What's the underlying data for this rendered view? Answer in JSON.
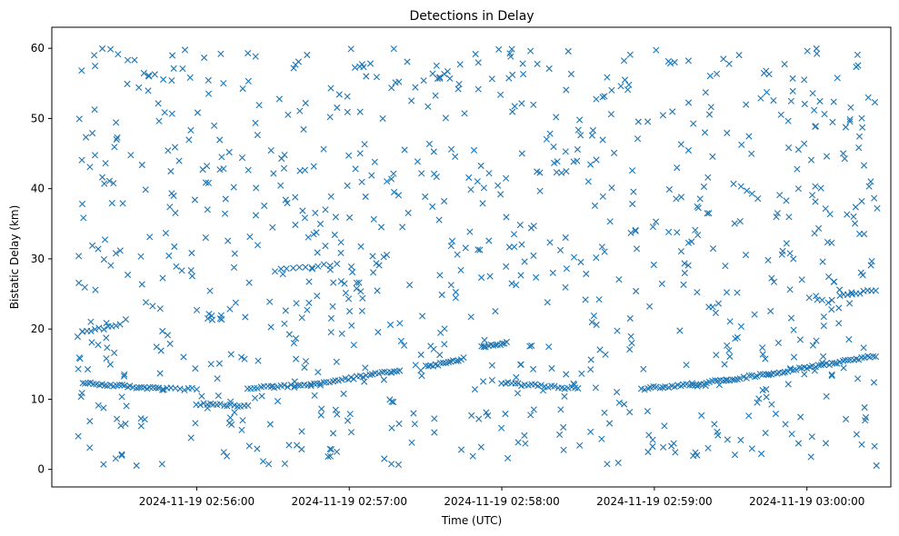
{
  "chart_data": {
    "type": "scatter",
    "title": "Detections in Delay",
    "xlabel": "Time (UTC)",
    "ylabel": "Bistatic Delay (km)",
    "marker": "x",
    "color": "#1f77b4",
    "grid": false,
    "legend": null,
    "x_unit": "seconds",
    "xlim": [
      "2024-11-19 02:55:03",
      "2024-11-19 03:00:33"
    ],
    "ylim": [
      -2.5,
      63
    ],
    "x_ticks": [
      "2024-11-19 02:56:00",
      "2024-11-19 02:57:00",
      "2024-11-19 02:58:00",
      "2024-11-19 02:59:00",
      "2024-11-19 03:00:00"
    ],
    "y_ticks": [
      0,
      10,
      20,
      30,
      40,
      50,
      60
    ],
    "tracks": [
      {
        "t_start": "2024-11-19 02:55:15",
        "t_end": "2024-11-19 02:55:45",
        "delay_start": 12.3,
        "delay_end": 11.5,
        "count": 28
      },
      {
        "t_start": "2024-11-19 02:55:45",
        "t_end": "2024-11-19 02:56:00",
        "delay_start": 11.5,
        "delay_end": 11.4,
        "count": 10
      },
      {
        "t_start": "2024-11-19 02:56:00",
        "t_end": "2024-11-19 02:56:20",
        "delay_start": 9.3,
        "delay_end": 9.0,
        "count": 16
      },
      {
        "t_start": "2024-11-19 02:56:20",
        "t_end": "2024-11-19 02:56:45",
        "delay_start": 11.6,
        "delay_end": 12.0,
        "count": 20
      },
      {
        "t_start": "2024-11-19 02:56:45",
        "t_end": "2024-11-19 02:57:20",
        "delay_start": 12.0,
        "delay_end": 14.2,
        "count": 30
      },
      {
        "t_start": "2024-11-19 02:57:30",
        "t_end": "2024-11-19 02:57:45",
        "delay_start": 14.6,
        "delay_end": 15.8,
        "count": 16
      },
      {
        "t_start": "2024-11-19 02:57:52",
        "t_end": "2024-11-19 02:58:02",
        "delay_start": 17.5,
        "delay_end": 18.0,
        "count": 12
      },
      {
        "t_start": "2024-11-19 02:58:00",
        "t_end": "2024-11-19 02:58:30",
        "delay_start": 12.3,
        "delay_end": 11.5,
        "count": 24
      },
      {
        "t_start": "2024-11-19 02:58:55",
        "t_end": "2024-11-19 02:59:15",
        "delay_start": 11.5,
        "delay_end": 12.1,
        "count": 18
      },
      {
        "t_start": "2024-11-19 02:59:15",
        "t_end": "2024-11-19 02:59:45",
        "delay_start": 12.1,
        "delay_end": 13.6,
        "count": 28
      },
      {
        "t_start": "2024-11-19 02:59:45",
        "t_end": "2024-11-19 03:00:27",
        "delay_start": 13.6,
        "delay_end": 16.2,
        "count": 40
      },
      {
        "t_start": "2024-11-19 02:55:15",
        "t_end": "2024-11-19 02:55:30",
        "delay_start": 19.5,
        "delay_end": 20.6,
        "count": 10
      },
      {
        "t_start": "2024-11-19 02:56:33",
        "t_end": "2024-11-19 02:56:55",
        "delay_start": 28.5,
        "delay_end": 29.2,
        "count": 10
      },
      {
        "t_start": "2024-11-19 03:00:13",
        "t_end": "2024-11-19 03:00:27",
        "delay_start": 24.8,
        "delay_end": 25.5,
        "count": 10
      }
    ],
    "clutter": {
      "t_range": [
        "2024-11-19 02:55:12",
        "2024-11-19 03:00:28"
      ],
      "delay_range": [
        0.5,
        60
      ],
      "count": 900
    }
  }
}
